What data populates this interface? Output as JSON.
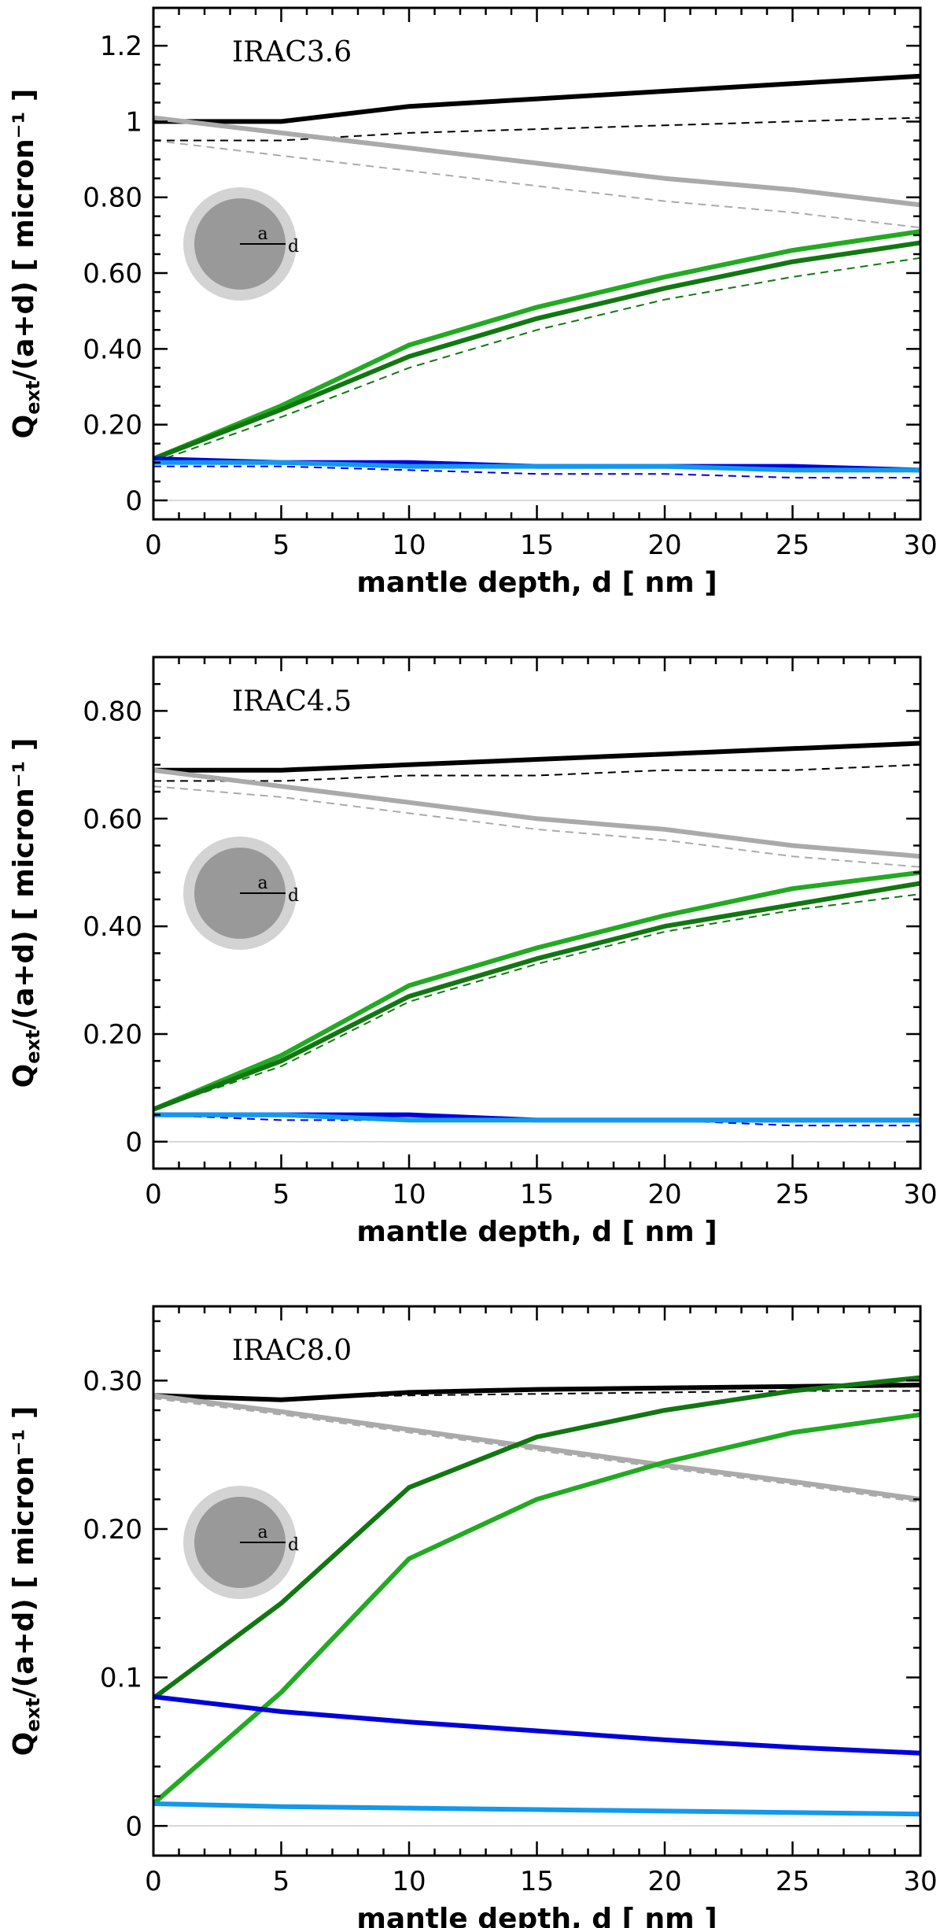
{
  "chart_data": [
    {
      "type": "line",
      "panel_label": "IRAC3.6",
      "xlabel": "mantle depth, d [ nm ]",
      "ylabel": "Q_ext/(a+d) [ micron⁻¹ ]",
      "xlim": [
        0,
        30
      ],
      "ylim": [
        -0.05,
        1.3
      ],
      "xticks": [
        0,
        5,
        10,
        15,
        20,
        25,
        30
      ],
      "xtick_labels": [
        "0",
        "5",
        "10",
        "15",
        "20",
        "25",
        "30"
      ],
      "yticks": [
        0,
        0.2,
        0.4,
        0.6,
        0.8,
        1.0,
        1.2
      ],
      "ytick_labels": [
        "0",
        "0.20",
        "0.40",
        "0.60",
        "0.80",
        "1",
        "1.2"
      ],
      "x": [
        0,
        5,
        10,
        15,
        20,
        25,
        30
      ],
      "inset": {
        "core_label": "a",
        "mantle_label": "d"
      },
      "series": [
        {
          "key": "black-solid",
          "color": "#000000",
          "style": "solid",
          "width": 6,
          "values": [
            1.0,
            1.0,
            1.04,
            1.06,
            1.08,
            1.1,
            1.12
          ]
        },
        {
          "key": "black-dashed",
          "color": "#000000",
          "style": "dashed",
          "width": 2,
          "values": [
            0.95,
            0.95,
            0.97,
            0.98,
            0.99,
            1.0,
            1.01
          ]
        },
        {
          "key": "gray-solid",
          "color": "#aaaaaa",
          "style": "solid",
          "width": 6,
          "values": [
            1.01,
            0.97,
            0.93,
            0.89,
            0.85,
            0.82,
            0.78
          ]
        },
        {
          "key": "gray-dashed",
          "color": "#aaaaaa",
          "style": "dashed",
          "width": 2,
          "values": [
            0.95,
            0.91,
            0.87,
            0.83,
            0.79,
            0.76,
            0.72
          ]
        },
        {
          "key": "lightgreen-solid",
          "color": "#22aa22",
          "style": "solid",
          "width": 6,
          "values": [
            0.11,
            0.25,
            0.41,
            0.51,
            0.59,
            0.66,
            0.71
          ]
        },
        {
          "key": "darkgreen-solid",
          "color": "#117711",
          "style": "solid",
          "width": 6,
          "values": [
            0.11,
            0.24,
            0.38,
            0.48,
            0.56,
            0.63,
            0.68
          ]
        },
        {
          "key": "darkgreen-dashed",
          "color": "#117711",
          "style": "dashed",
          "width": 2,
          "values": [
            0.1,
            0.22,
            0.35,
            0.45,
            0.53,
            0.59,
            0.64
          ]
        },
        {
          "key": "blue-solid",
          "color": "#0000dd",
          "style": "solid",
          "width": 6,
          "values": [
            0.11,
            0.1,
            0.1,
            0.09,
            0.09,
            0.09,
            0.08
          ]
        },
        {
          "key": "blue-dashed",
          "color": "#0000dd",
          "style": "dashed",
          "width": 2,
          "values": [
            0.09,
            0.09,
            0.08,
            0.07,
            0.07,
            0.06,
            0.06
          ]
        },
        {
          "key": "cyan-solid",
          "color": "#1199ee",
          "style": "solid",
          "width": 6,
          "values": [
            0.1,
            0.1,
            0.09,
            0.09,
            0.09,
            0.08,
            0.08
          ]
        }
      ]
    },
    {
      "type": "line",
      "panel_label": "IRAC4.5",
      "xlabel": "mantle depth, d [ nm ]",
      "ylabel": "Q_ext/(a+d) [ micron⁻¹ ]",
      "xlim": [
        0,
        30
      ],
      "ylim": [
        -0.05,
        0.9
      ],
      "xticks": [
        0,
        5,
        10,
        15,
        20,
        25,
        30
      ],
      "xtick_labels": [
        "0",
        "5",
        "10",
        "15",
        "20",
        "25",
        "30"
      ],
      "yticks": [
        0,
        0.2,
        0.4,
        0.6,
        0.8
      ],
      "ytick_labels": [
        "0",
        "0.20",
        "0.40",
        "0.60",
        "0.80"
      ],
      "x": [
        0,
        5,
        10,
        15,
        20,
        25,
        30
      ],
      "inset": {
        "core_label": "a",
        "mantle_label": "d"
      },
      "series": [
        {
          "key": "black-solid",
          "color": "#000000",
          "style": "solid",
          "width": 6,
          "values": [
            0.69,
            0.69,
            0.7,
            0.71,
            0.72,
            0.73,
            0.74
          ]
        },
        {
          "key": "black-dashed",
          "color": "#000000",
          "style": "dashed",
          "width": 2,
          "values": [
            0.67,
            0.67,
            0.68,
            0.68,
            0.69,
            0.69,
            0.7
          ]
        },
        {
          "key": "gray-solid",
          "color": "#aaaaaa",
          "style": "solid",
          "width": 6,
          "values": [
            0.69,
            0.66,
            0.63,
            0.6,
            0.58,
            0.55,
            0.53
          ]
        },
        {
          "key": "gray-dashed",
          "color": "#aaaaaa",
          "style": "dashed",
          "width": 2,
          "values": [
            0.66,
            0.64,
            0.61,
            0.58,
            0.56,
            0.53,
            0.51
          ]
        },
        {
          "key": "lightgreen-solid",
          "color": "#22aa22",
          "style": "solid",
          "width": 6,
          "values": [
            0.06,
            0.16,
            0.29,
            0.36,
            0.42,
            0.47,
            0.5
          ]
        },
        {
          "key": "darkgreen-solid",
          "color": "#117711",
          "style": "solid",
          "width": 6,
          "values": [
            0.06,
            0.15,
            0.27,
            0.34,
            0.4,
            0.44,
            0.48
          ]
        },
        {
          "key": "darkgreen-dashed",
          "color": "#117711",
          "style": "dashed",
          "width": 2,
          "values": [
            0.06,
            0.14,
            0.26,
            0.33,
            0.39,
            0.43,
            0.46
          ]
        },
        {
          "key": "blue-solid",
          "color": "#0000dd",
          "style": "solid",
          "width": 6,
          "values": [
            0.05,
            0.05,
            0.05,
            0.04,
            0.04,
            0.04,
            0.04
          ]
        },
        {
          "key": "blue-dashed",
          "color": "#0000dd",
          "style": "dashed",
          "width": 2,
          "values": [
            0.05,
            0.04,
            0.04,
            0.04,
            0.04,
            0.03,
            0.03
          ]
        },
        {
          "key": "cyan-solid",
          "color": "#1199ee",
          "style": "solid",
          "width": 6,
          "values": [
            0.05,
            0.05,
            0.04,
            0.04,
            0.04,
            0.04,
            0.04
          ]
        }
      ]
    },
    {
      "type": "line",
      "panel_label": "IRAC8.0",
      "xlabel": "mantle depth, d [ nm ]",
      "ylabel": "Q_ext/(a+d) [ micron⁻¹ ]",
      "xlim": [
        0,
        30
      ],
      "ylim": [
        -0.02,
        0.35
      ],
      "xticks": [
        0,
        5,
        10,
        15,
        20,
        25,
        30
      ],
      "xtick_labels": [
        "0",
        "5",
        "10",
        "15",
        "20",
        "25",
        "30"
      ],
      "yticks": [
        0,
        0.1,
        0.2,
        0.3
      ],
      "ytick_labels": [
        "0",
        "0.1",
        "0.20",
        "0.30"
      ],
      "x": [
        0,
        5,
        10,
        15,
        20,
        25,
        30
      ],
      "inset": {
        "core_label": "a",
        "mantle_label": "d"
      },
      "series": [
        {
          "key": "black-solid",
          "color": "#000000",
          "style": "solid",
          "width": 6,
          "values": [
            0.29,
            0.287,
            0.292,
            0.294,
            0.295,
            0.296,
            0.297
          ]
        },
        {
          "key": "black-dashed",
          "color": "#000000",
          "style": "dashed",
          "width": 2,
          "values": [
            0.29,
            0.288,
            0.29,
            0.291,
            0.292,
            0.293,
            0.293
          ]
        },
        {
          "key": "gray-solid",
          "color": "#aaaaaa",
          "style": "solid",
          "width": 6,
          "values": [
            0.29,
            0.279,
            0.267,
            0.255,
            0.243,
            0.232,
            0.22
          ]
        },
        {
          "key": "gray-dashed",
          "color": "#aaaaaa",
          "style": "dashed",
          "width": 2,
          "values": [
            0.288,
            0.277,
            0.265,
            0.253,
            0.241,
            0.23,
            0.218
          ]
        },
        {
          "key": "lightgreen-solid",
          "color": "#22aa22",
          "style": "solid",
          "width": 6,
          "values": [
            0.015,
            0.09,
            0.18,
            0.22,
            0.245,
            0.265,
            0.277
          ]
        },
        {
          "key": "darkgreen-solid",
          "color": "#117711",
          "style": "solid",
          "width": 6,
          "values": [
            0.086,
            0.15,
            0.228,
            0.262,
            0.28,
            0.293,
            0.302
          ]
        },
        {
          "key": "blue-solid",
          "color": "#0000dd",
          "style": "solid",
          "width": 6,
          "values": [
            0.087,
            0.077,
            0.07,
            0.064,
            0.058,
            0.053,
            0.049
          ]
        },
        {
          "key": "cyan-solid",
          "color": "#1199ee",
          "style": "solid",
          "width": 6,
          "values": [
            0.015,
            0.013,
            0.012,
            0.011,
            0.01,
            0.009,
            0.008
          ]
        }
      ]
    }
  ]
}
